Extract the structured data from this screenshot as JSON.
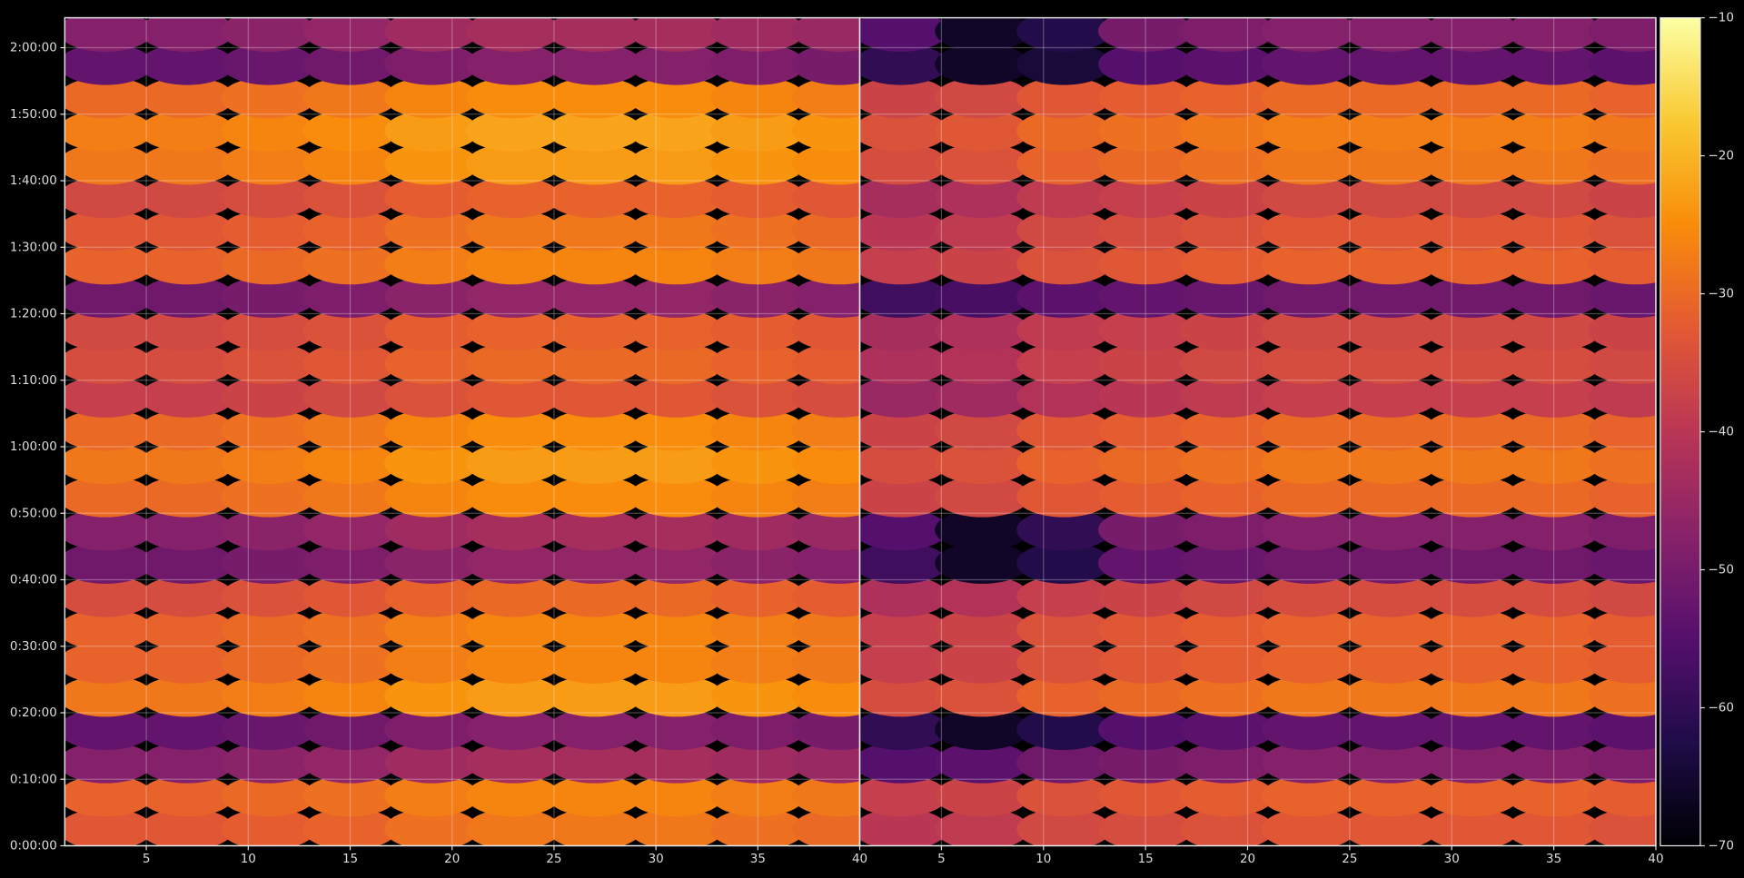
{
  "chart_data": {
    "type": "heatmap",
    "colormap": "inferno",
    "grid": true,
    "clim": [
      -70,
      -10
    ],
    "cticks": [
      {
        "value": -70,
        "label": "−70"
      },
      {
        "value": -60,
        "label": "−60"
      },
      {
        "value": -50,
        "label": "−50"
      },
      {
        "value": -40,
        "label": "−40"
      },
      {
        "value": -30,
        "label": "−30"
      },
      {
        "value": -20,
        "label": "−20"
      },
      {
        "value": -10,
        "label": "−10"
      }
    ],
    "ylim": [
      0,
      7470
    ],
    "yticks": [
      {
        "value": 0,
        "label": "0:00:00"
      },
      {
        "value": 600,
        "label": "0:10:00"
      },
      {
        "value": 1200,
        "label": "0:20:00"
      },
      {
        "value": 1800,
        "label": "0:30:00"
      },
      {
        "value": 2400,
        "label": "0:40:00"
      },
      {
        "value": 3000,
        "label": "0:50:00"
      },
      {
        "value": 3600,
        "label": "1:00:00"
      },
      {
        "value": 4200,
        "label": "1:10:00"
      },
      {
        "value": 4800,
        "label": "1:20:00"
      },
      {
        "value": 5400,
        "label": "1:30:00"
      },
      {
        "value": 6000,
        "label": "1:40:00"
      },
      {
        "value": 6600,
        "label": "1:50:00"
      },
      {
        "value": 7200,
        "label": "2:00:00"
      }
    ],
    "y": [
      150,
      450,
      750,
      1050,
      1350,
      1650,
      1950,
      2250,
      2550,
      2850,
      3150,
      3450,
      3750,
      4050,
      4350,
      4650,
      4950,
      5250,
      5550,
      5850,
      6150,
      6450,
      6750,
      7050,
      7350
    ],
    "panels": [
      {
        "xlim": [
          1,
          40
        ],
        "xticks": [
          5,
          10,
          15,
          20,
          25,
          30,
          35,
          40
        ],
        "x": [
          3,
          7,
          11,
          15,
          19,
          23,
          27,
          31,
          35,
          39
        ],
        "z": [
          [
            -33,
            -33,
            -32,
            -31,
            -29,
            -28,
            -28,
            -28,
            -29,
            -30
          ],
          [
            -31,
            -31,
            -30,
            -29,
            -27,
            -26,
            -26,
            -26,
            -27,
            -28
          ],
          [
            -48,
            -48,
            -47,
            -46,
            -44,
            -43,
            -43,
            -43,
            -44,
            -45
          ],
          [
            -53,
            -53,
            -52,
            -51,
            -49,
            -48,
            -48,
            -48,
            -49,
            -50
          ],
          [
            -28,
            -28,
            -27,
            -26,
            -24,
            -23,
            -23,
            -23,
            -24,
            -25
          ],
          [
            -31,
            -31,
            -30,
            -29,
            -27,
            -26,
            -26,
            -26,
            -27,
            -28
          ],
          [
            -31,
            -31,
            -30,
            -29,
            -27,
            -26,
            -26,
            -26,
            -27,
            -28
          ],
          [
            -35,
            -35,
            -34,
            -33,
            -31,
            -30,
            -30,
            -30,
            -31,
            -32
          ],
          [
            -51,
            -51,
            -50,
            -49,
            -47,
            -46,
            -46,
            -46,
            -47,
            -48
          ],
          [
            -48,
            -48,
            -47,
            -46,
            -44,
            -43,
            -43,
            -43,
            -44,
            -45
          ],
          [
            -30,
            -30,
            -29,
            -28,
            -26,
            -25,
            -25,
            -25,
            -26,
            -27
          ],
          [
            -28,
            -28,
            -27,
            -26,
            -24,
            -23,
            -23,
            -23,
            -24,
            -25
          ],
          [
            -30,
            -30,
            -29,
            -28,
            -26,
            -25,
            -25,
            -25,
            -26,
            -27
          ],
          [
            -38,
            -38,
            -37,
            -36,
            -34,
            -33,
            -33,
            -33,
            -34,
            -35
          ],
          [
            -35,
            -35,
            -34,
            -33,
            -31,
            -30,
            -30,
            -30,
            -31,
            -32
          ],
          [
            -36,
            -36,
            -35,
            -34,
            -32,
            -31,
            -31,
            -31,
            -32,
            -33
          ],
          [
            -51,
            -51,
            -50,
            -49,
            -47,
            -46,
            -46,
            -46,
            -47,
            -48
          ],
          [
            -31,
            -31,
            -30,
            -29,
            -27,
            -26,
            -26,
            -26,
            -27,
            -28
          ],
          [
            -33,
            -33,
            -32,
            -31,
            -29,
            -28,
            -28,
            -28,
            -29,
            -30
          ],
          [
            -36,
            -36,
            -35,
            -34,
            -32,
            -31,
            -31,
            -31,
            -32,
            -33
          ],
          [
            -28,
            -28,
            -27,
            -26,
            -24,
            -23,
            -23,
            -23,
            -24,
            -25
          ],
          [
            -27,
            -27,
            -26,
            -25,
            -23,
            -22,
            -22,
            -22,
            -23,
            -24
          ],
          [
            -30,
            -30,
            -29,
            -28,
            -26,
            -25,
            -25,
            -25,
            -26,
            -27
          ],
          [
            -53,
            -53,
            -52,
            -51,
            -49,
            -48,
            -48,
            -48,
            -49,
            -50
          ],
          [
            -48,
            -48,
            -47,
            -46,
            -44,
            -43,
            -43,
            -43,
            -44,
            -45
          ]
        ]
      },
      {
        "xlim": [
          1,
          40
        ],
        "xticks": [
          5,
          10,
          15,
          20,
          25,
          30,
          35,
          40
        ],
        "x": [
          3,
          7,
          11,
          15,
          19,
          23,
          27,
          31,
          35,
          39
        ],
        "z": [
          [
            -40,
            -39,
            -36,
            -35,
            -34,
            -33,
            -33,
            -33,
            -33,
            -34
          ],
          [
            -38,
            -37,
            -34,
            -33,
            -32,
            -31,
            -31,
            -31,
            -31,
            -32
          ],
          [
            -55,
            -54,
            -51,
            -50,
            -49,
            -48,
            -48,
            -48,
            -48,
            -49
          ],
          [
            -60,
            -66,
            -62,
            -55,
            -54,
            -53,
            -53,
            -53,
            -53,
            -54
          ],
          [
            -35,
            -34,
            -31,
            -30,
            -29,
            -28,
            -28,
            -28,
            -28,
            -29
          ],
          [
            -38,
            -37,
            -34,
            -33,
            -32,
            -31,
            -31,
            -31,
            -31,
            -32
          ],
          [
            -38,
            -37,
            -34,
            -33,
            -32,
            -31,
            -31,
            -31,
            -31,
            -32
          ],
          [
            -42,
            -41,
            -38,
            -37,
            -36,
            -35,
            -35,
            -35,
            -35,
            -36
          ],
          [
            -58,
            -66,
            -62,
            -53,
            -52,
            -51,
            -51,
            -51,
            -51,
            -52
          ],
          [
            -55,
            -66,
            -60,
            -50,
            -49,
            -48,
            -48,
            -48,
            -48,
            -49
          ],
          [
            -37,
            -36,
            -33,
            -32,
            -31,
            -30,
            -30,
            -30,
            -30,
            -31
          ],
          [
            -35,
            -34,
            -31,
            -30,
            -29,
            -28,
            -28,
            -28,
            -28,
            -29
          ],
          [
            -37,
            -36,
            -33,
            -32,
            -31,
            -30,
            -30,
            -30,
            -30,
            -31
          ],
          [
            -45,
            -44,
            -41,
            -40,
            -39,
            -38,
            -38,
            -38,
            -38,
            -39
          ],
          [
            -42,
            -41,
            -38,
            -37,
            -36,
            -35,
            -35,
            -35,
            -35,
            -36
          ],
          [
            -43,
            -42,
            -39,
            -38,
            -37,
            -36,
            -36,
            -36,
            -36,
            -37
          ],
          [
            -58,
            -57,
            -54,
            -53,
            -52,
            -51,
            -51,
            -51,
            -51,
            -52
          ],
          [
            -38,
            -37,
            -34,
            -33,
            -32,
            -31,
            -31,
            -31,
            -31,
            -32
          ],
          [
            -40,
            -39,
            -36,
            -35,
            -34,
            -33,
            -33,
            -33,
            -33,
            -34
          ],
          [
            -43,
            -42,
            -39,
            -38,
            -37,
            -36,
            -36,
            -36,
            -36,
            -37
          ],
          [
            -35,
            -34,
            -31,
            -30,
            -29,
            -28,
            -28,
            -28,
            -28,
            -29
          ],
          [
            -34,
            -33,
            -30,
            -29,
            -28,
            -27,
            -27,
            -27,
            -27,
            -28
          ],
          [
            -37,
            -36,
            -33,
            -32,
            -31,
            -30,
            -30,
            -30,
            -30,
            -31
          ],
          [
            -60,
            -66,
            -64,
            -55,
            -54,
            -53,
            -53,
            -53,
            -53,
            -54
          ],
          [
            -55,
            -66,
            -62,
            -50,
            -49,
            -48,
            -48,
            -48,
            -48,
            -49
          ]
        ]
      }
    ]
  }
}
